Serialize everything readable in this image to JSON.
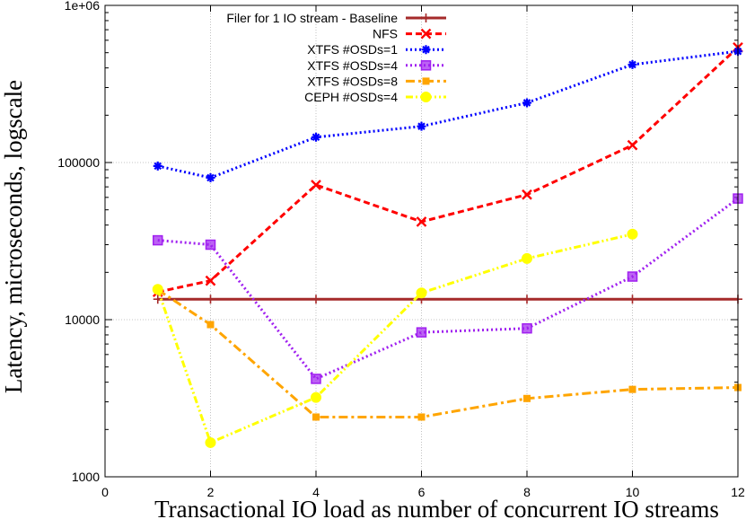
{
  "chart_data": {
    "type": "line",
    "title": "",
    "xlabel": "Transactional IO load as number of concurrent IO streams",
    "ylabel": "Latency, microseconds, logscale",
    "xlim": [
      0,
      12
    ],
    "ylim": [
      1000,
      1000000
    ],
    "y_scale": "log",
    "grid": true,
    "legend_position": "top-left",
    "x_ticks": [
      "0",
      "2",
      "4",
      "6",
      "8",
      "10",
      "12"
    ],
    "x_tick_values": [
      0,
      2,
      4,
      6,
      8,
      10,
      12
    ],
    "y_ticks": [
      "1000",
      "10000",
      "100000",
      "1e+06"
    ],
    "y_tick_values": [
      1000,
      10000,
      100000,
      1000000
    ],
    "series": [
      {
        "name": "Filer for 1 IO stream - Baseline",
        "color": "#a52a2a",
        "dash": "solid",
        "marker": "plus",
        "x": [
          1,
          2,
          4,
          6,
          8,
          10,
          12
        ],
        "y": [
          13500,
          13500,
          13500,
          13500,
          13500,
          13500,
          13500
        ]
      },
      {
        "name": "NFS",
        "color": "#ff0000",
        "dash": "dashed",
        "marker": "x",
        "x": [
          1,
          2,
          4,
          6,
          8,
          10,
          12
        ],
        "y": [
          15000,
          17700,
          72000,
          42000,
          62500,
          129000,
          540000
        ]
      },
      {
        "name": "XTFS #OSDs=1",
        "color": "#0000ff",
        "dash": "dotted",
        "marker": "star",
        "x": [
          1,
          2,
          4,
          6,
          8,
          10,
          12
        ],
        "y": [
          95000,
          80000,
          145000,
          170000,
          240000,
          420000,
          510000
        ]
      },
      {
        "name": "XTFS #OSDs=4",
        "color": "#a020f0",
        "dash": "dotted",
        "marker": "square",
        "x": [
          1,
          2,
          4,
          6,
          8,
          10,
          12
        ],
        "y": [
          32000,
          30000,
          4200,
          8300,
          8800,
          18800,
          59000
        ]
      },
      {
        "name": "XTFS #OSDs=8",
        "color": "#ffa500",
        "dash": "dashdot",
        "marker": "filled-square",
        "x": [
          1,
          2,
          4,
          6,
          8,
          10,
          12
        ],
        "y": [
          15500,
          9300,
          2400,
          2400,
          3150,
          3600,
          3700
        ]
      },
      {
        "name": "CEPH #OSDs=4",
        "color": "#ffff00",
        "dash": "dashdotdot",
        "marker": "circle",
        "x": [
          1,
          2,
          4,
          6,
          8,
          10
        ],
        "y": [
          15600,
          1650,
          3200,
          14800,
          24500,
          35000
        ]
      }
    ]
  }
}
